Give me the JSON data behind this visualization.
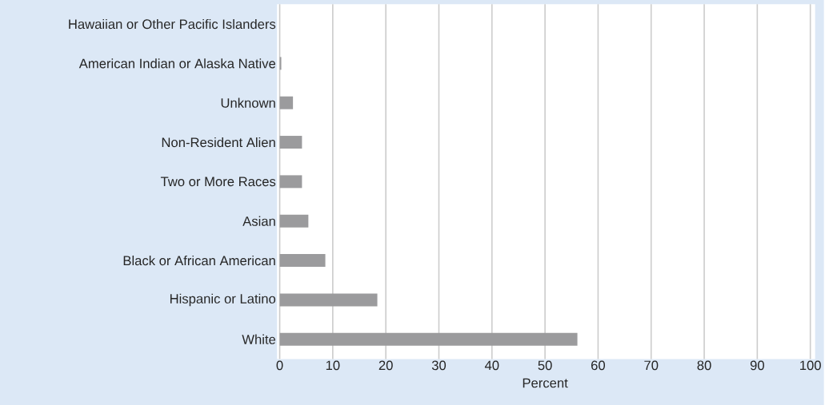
{
  "chart_data": {
    "type": "bar",
    "orientation": "horizontal",
    "xlabel": "Percent",
    "categories": [
      "Hawaiian or Other Pacific Islanders",
      "American Indian or Alaska Native",
      "Unknown",
      "Non-Resident Alien",
      "Two or More Races",
      "Asian",
      "Black or African American",
      "Hispanic or  Latino",
      "White"
    ],
    "values": [
      0,
      0.3,
      2.5,
      4.2,
      4.2,
      5.4,
      8.6,
      18.4,
      56.1
    ],
    "color": "#9b9b9d",
    "xlim": [
      0,
      100
    ],
    "xticks": [
      0,
      10,
      20,
      30,
      40,
      50,
      60,
      70,
      80,
      90,
      100
    ],
    "grid": "x"
  }
}
